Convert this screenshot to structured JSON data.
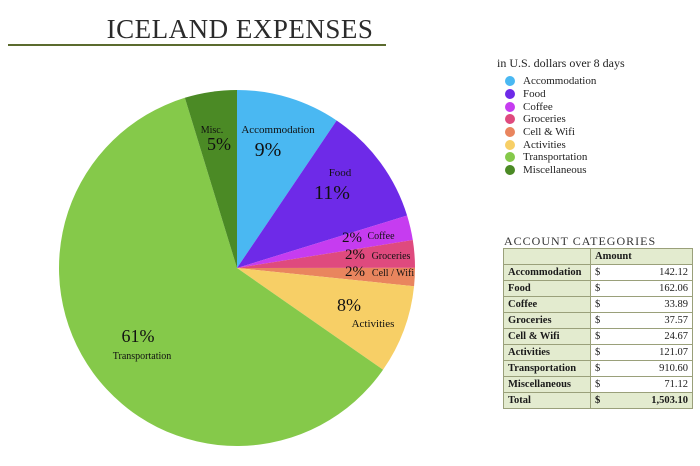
{
  "title": "ICELAND EXPENSES",
  "legend": {
    "subtitle": "in U.S. dollars over 8 days",
    "items": [
      {
        "label": "Accommodation",
        "color": "#4ab8f2"
      },
      {
        "label": "Food",
        "color": "#6e2ae8"
      },
      {
        "label": "Coffee",
        "color": "#c63cf0"
      },
      {
        "label": "Groceries",
        "color": "#df4a7e"
      },
      {
        "label": "Cell & Wifi",
        "color": "#e9855e"
      },
      {
        "label": "Activities",
        "color": "#f7cf66"
      },
      {
        "label": "Transportation",
        "color": "#85c94a"
      },
      {
        "label": "Miscellaneous",
        "color": "#4b8a25"
      }
    ]
  },
  "chart_data": {
    "type": "pie",
    "title": "ICELAND EXPENSES",
    "subtitle": "in U.S. dollars over 8 days",
    "start_angle": "12 o'clock, clockwise",
    "slices": [
      {
        "name": "Accommodation",
        "label": "Accommodation",
        "pct": "9%",
        "value": 142.12,
        "color": "#4ab8f2"
      },
      {
        "name": "Food",
        "label": "Food",
        "pct": "11%",
        "value": 162.06,
        "color": "#6e2ae8"
      },
      {
        "name": "Coffee",
        "label": "Coffee",
        "pct": "2%",
        "value": 33.89,
        "color": "#c63cf0"
      },
      {
        "name": "Groceries",
        "label": "Groceries",
        "pct": "2%",
        "value": 37.57,
        "color": "#df4a7e"
      },
      {
        "name": "Cell & Wifi",
        "label": "Cell / Wifi",
        "pct": "2%",
        "value": 24.67,
        "color": "#e9855e"
      },
      {
        "name": "Activities",
        "label": "Activities",
        "pct": "8%",
        "value": 121.07,
        "color": "#f7cf66"
      },
      {
        "name": "Transportation",
        "label": "Transportation",
        "pct": "61%",
        "value": 910.6,
        "color": "#85c94a"
      },
      {
        "name": "Miscellaneous",
        "label": "Misc.",
        "pct": "5%",
        "value": 71.12,
        "color": "#4b8a25"
      }
    ]
  },
  "table": {
    "title": "ACCOUNT CATEGORIES",
    "header": "Amount",
    "currency": "$",
    "rows": [
      {
        "cat": "Accommodation",
        "amt": "142.12"
      },
      {
        "cat": "Food",
        "amt": "162.06"
      },
      {
        "cat": "Coffee",
        "amt": "33.89"
      },
      {
        "cat": "Groceries",
        "amt": "37.57"
      },
      {
        "cat": "Cell & Wifi",
        "amt": "24.67"
      },
      {
        "cat": "Activities",
        "amt": "121.07"
      },
      {
        "cat": "Transportation",
        "amt": "910.60"
      },
      {
        "cat": "Miscellaneous",
        "amt": "71.12"
      }
    ],
    "total_label": "Total",
    "total_amt": "1,503.10"
  }
}
